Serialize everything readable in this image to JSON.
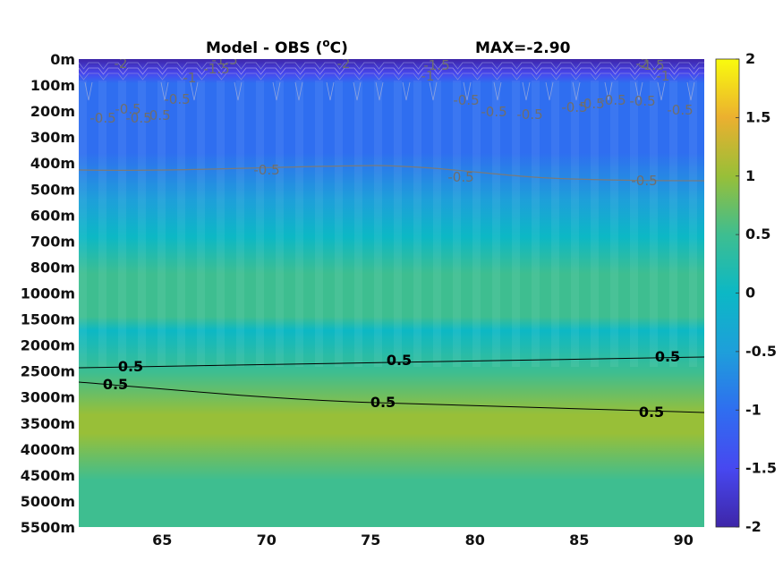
{
  "chart_data": {
    "type": "heatmap",
    "title_left": "Model - OBS (",
    "title_unit_sup": "o",
    "title_unit_close": "C)",
    "title_right": "MAX=-2.90",
    "x_ticks": [
      "65",
      "70",
      "75",
      "80",
      "85",
      "90"
    ],
    "x_tick_values": [
      65,
      70,
      75,
      80,
      85,
      90
    ],
    "xlim": [
      61,
      91
    ],
    "y_tick_labels": [
      "0m",
      "100m",
      "200m",
      "300m",
      "400m",
      "500m",
      "600m",
      "700m",
      "800m",
      "1000m",
      "1500m",
      "2000m",
      "2500m",
      "3000m",
      "3500m",
      "4000m",
      "4500m",
      "5000m",
      "5500m"
    ],
    "colorbar": {
      "ticks": [
        "2",
        "1.5",
        "1",
        "0.5",
        "0",
        "-0.5",
        "-1",
        "-1.5",
        "-2"
      ],
      "range": [
        -2,
        2
      ],
      "colormap": "parula"
    },
    "colors": {
      "c_min": "#3e26a8",
      "c_neg15": "#4748f0",
      "c_neg1": "#2f6ef0",
      "c_neg05": "#1e9fda",
      "c_0": "#0cb8c5",
      "c_05": "#3ebe90",
      "c_1": "#98bf38",
      "c_15": "#ebb02f",
      "c_max": "#f9fb0e"
    },
    "contour_labels_black": [
      "0.5",
      "0.5",
      "0.5",
      "0.5",
      "0.5",
      "0.5"
    ],
    "contour_labels_gray": [
      "-2",
      "-1",
      "-1.5",
      "-1.5",
      "-2",
      "-1.5",
      "-1",
      "-2",
      "-1.5",
      "-1",
      "-0.5",
      "-0.5",
      "-0.5",
      "-0.5",
      "-0.5",
      "-0.5",
      "-0.5",
      "-0.5",
      "-0.5",
      "-0.5",
      "-0.5",
      "-0.5",
      "-0.5",
      "-0.5",
      "-0.5",
      "-0.5"
    ],
    "depth_profile_anomaly": [
      {
        "depth": "0m",
        "value": -1.9
      },
      {
        "depth": "100m",
        "value": -0.6
      },
      {
        "depth": "200m",
        "value": -0.75
      },
      {
        "depth": "400m",
        "value": -0.55
      },
      {
        "depth": "600m",
        "value": -0.05
      },
      {
        "depth": "800m",
        "value": 0.1
      },
      {
        "depth": "1500m",
        "value": -0.1
      },
      {
        "depth": "2000m",
        "value": 0.45
      },
      {
        "depth": "2500m",
        "value": 0.6
      },
      {
        "depth": "3000m",
        "value": 0.55
      },
      {
        "depth": "4000m",
        "value": 0.25
      },
      {
        "depth": "5500m",
        "value": 0.2
      }
    ]
  }
}
